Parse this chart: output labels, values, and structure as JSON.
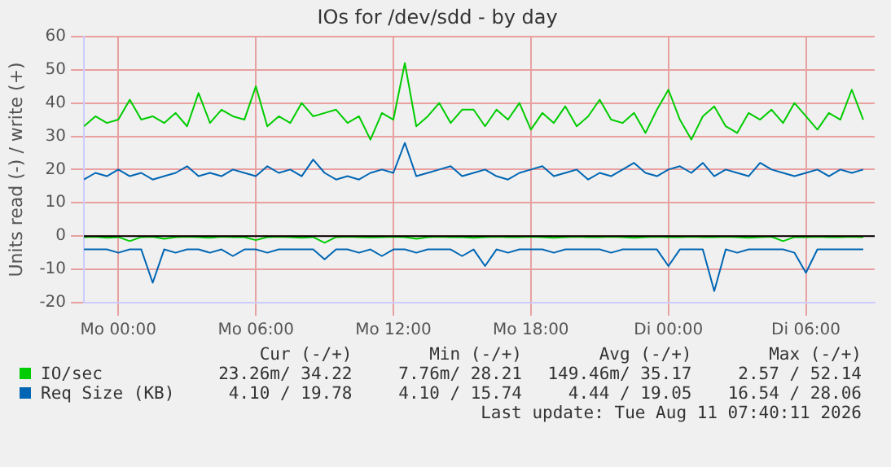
{
  "chart_data": {
    "type": "line",
    "title": "IOs for /dev/sdd - by day",
    "ylabel": "Units read (-) / write (+)",
    "x": [
      "2026-08-09T22:30",
      "2026-08-09T23:00",
      "2026-08-09T23:30",
      "2026-08-10T00:00",
      "2026-08-10T00:30",
      "2026-08-10T01:00",
      "2026-08-10T01:30",
      "2026-08-10T02:00",
      "2026-08-10T02:30",
      "2026-08-10T03:00",
      "2026-08-10T03:30",
      "2026-08-10T04:00",
      "2026-08-10T04:30",
      "2026-08-10T05:00",
      "2026-08-10T05:30",
      "2026-08-10T06:00",
      "2026-08-10T06:30",
      "2026-08-10T07:00",
      "2026-08-10T07:30",
      "2026-08-10T08:00",
      "2026-08-10T08:30",
      "2026-08-10T09:00",
      "2026-08-10T09:30",
      "2026-08-10T10:00",
      "2026-08-10T10:30",
      "2026-08-10T11:00",
      "2026-08-10T11:30",
      "2026-08-10T12:00",
      "2026-08-10T12:30",
      "2026-08-10T13:00",
      "2026-08-10T13:30",
      "2026-08-10T14:00",
      "2026-08-10T14:30",
      "2026-08-10T15:00",
      "2026-08-10T15:30",
      "2026-08-10T16:00",
      "2026-08-10T16:30",
      "2026-08-10T17:00",
      "2026-08-10T17:30",
      "2026-08-10T18:00",
      "2026-08-10T18:30",
      "2026-08-10T19:00",
      "2026-08-10T19:30",
      "2026-08-10T20:00",
      "2026-08-10T20:30",
      "2026-08-10T21:00",
      "2026-08-10T21:30",
      "2026-08-10T22:00",
      "2026-08-10T22:30",
      "2026-08-10T23:00",
      "2026-08-10T23:30",
      "2026-08-11T00:00",
      "2026-08-11T00:30",
      "2026-08-11T01:00",
      "2026-08-11T01:30",
      "2026-08-11T02:00",
      "2026-08-11T02:30",
      "2026-08-11T03:00",
      "2026-08-11T03:30",
      "2026-08-11T04:00",
      "2026-08-11T04:30",
      "2026-08-11T05:00",
      "2026-08-11T05:30",
      "2026-08-11T06:00",
      "2026-08-11T06:30",
      "2026-08-11T07:00",
      "2026-08-11T07:30",
      "2026-08-11T08:00",
      "2026-08-11T08:30"
    ],
    "series": [
      {
        "name": "IO/sec",
        "color": "#00cc00",
        "values": [
          33,
          36,
          34,
          35,
          41,
          35,
          36,
          34,
          37,
          33,
          43,
          34,
          38,
          36,
          35,
          45,
          33,
          36,
          34,
          40,
          36,
          37,
          38,
          34,
          36,
          29,
          37,
          35,
          52,
          33,
          36,
          40,
          34,
          38,
          38,
          33,
          38,
          35,
          40,
          32,
          37,
          34,
          39,
          33,
          36,
          41,
          35,
          34,
          37,
          31,
          38,
          44,
          35,
          29,
          36,
          39,
          33,
          31,
          37,
          35,
          38,
          34,
          40,
          36,
          32,
          37,
          35,
          44,
          35
        ]
      },
      {
        "color": "#00cc00",
        "values": [
          -0.3,
          -0.2,
          -0.5,
          -0.3,
          -1.5,
          -0.3,
          -0.2,
          -0.8,
          -0.3,
          -0.2,
          -0.3,
          -0.5,
          -0.2,
          -0.3,
          -0.3,
          -1.2,
          -0.3,
          -0.2,
          -0.3,
          -0.5,
          -0.3,
          -2,
          -0.3,
          -0.2,
          -0.3,
          -0.4,
          -0.3,
          -0.2,
          -0.3,
          -0.8,
          -0.3,
          -0.2,
          -0.3,
          -0.3,
          -0.5,
          -0.3,
          -0.2,
          -0.3,
          -0.3,
          -0.2,
          -0.3,
          -0.5,
          -0.3,
          -0.2,
          -0.3,
          -0.3,
          -0.2,
          -0.3,
          -0.5,
          -0.3,
          -0.2,
          -0.3,
          -0.3,
          -0.2,
          -0.3,
          -0.3,
          -0.2,
          -0.3,
          -0.5,
          -0.3,
          -0.2,
          -1.5,
          -0.3,
          -0.3,
          -0.2,
          -0.3,
          -0.3,
          -0.2,
          -0.3
        ]
      },
      {
        "name": "Req Size (KB)",
        "color": "#0066b3",
        "values": [
          17,
          19,
          18,
          20,
          18,
          19,
          17,
          18,
          19,
          21,
          18,
          19,
          18,
          20,
          19,
          18,
          21,
          19,
          20,
          18,
          23,
          19,
          17,
          18,
          17,
          19,
          20,
          19,
          28,
          18,
          19,
          20,
          21,
          18,
          19,
          20,
          18,
          17,
          19,
          20,
          21,
          18,
          19,
          20,
          17,
          19,
          18,
          20,
          22,
          19,
          18,
          20,
          21,
          19,
          22,
          18,
          20,
          19,
          18,
          22,
          20,
          19,
          18,
          19,
          20,
          18,
          20,
          19,
          20
        ]
      },
      {
        "color": "#0066b3",
        "values": [
          -4,
          -4,
          -4,
          -5,
          -4,
          -4,
          -14,
          -4,
          -5,
          -4,
          -4,
          -5,
          -4,
          -6,
          -4,
          -4,
          -5,
          -4,
          -4,
          -4,
          -4,
          -7,
          -4,
          -4,
          -5,
          -4,
          -6,
          -4,
          -4,
          -5,
          -4,
          -4,
          -4,
          -6,
          -4,
          -9,
          -4,
          -5,
          -4,
          -4,
          -4,
          -5,
          -4,
          -4,
          -4,
          -4,
          -5,
          -4,
          -4,
          -4,
          -4,
          -9,
          -4,
          -4,
          -4,
          -16.5,
          -4,
          -5,
          -4,
          -4,
          -4,
          -4,
          -5,
          -11,
          -4,
          -4,
          -4,
          -4,
          -4
        ]
      }
    ],
    "xlim": [
      "2026-08-09T22:30",
      "2026-08-11T09:00"
    ],
    "xticks": [
      {
        "value": "2026-08-10T00:00",
        "label": "Mo 00:00"
      },
      {
        "value": "2026-08-10T06:00",
        "label": "Mo 06:00"
      },
      {
        "value": "2026-08-10T12:00",
        "label": "Mo 12:00"
      },
      {
        "value": "2026-08-10T18:00",
        "label": "Mo 18:00"
      },
      {
        "value": "2026-08-11T00:00",
        "label": "Di 00:00"
      },
      {
        "value": "2026-08-11T06:00",
        "label": "Di 06:00"
      }
    ],
    "ylim": [
      -20,
      60
    ],
    "yticks": [
      -20,
      -10,
      0,
      10,
      20,
      30,
      40,
      50,
      60
    ],
    "ref_lines": [
      {
        "axis": "y",
        "value": 0,
        "color": "#000000"
      }
    ],
    "grid": true,
    "legend": "bottom",
    "marker": "none",
    "line_style": "solid",
    "annotations": [
      "Cur (-/+)",
      "Min (-/+)",
      "Avg (-/+)",
      "Max (-/+)",
      "23.26m/ 34.22",
      "7.76m/ 28.21",
      "149.46m/ 35.17",
      "2.57 / 52.14",
      "4.10 / 19.78",
      "4.10 / 15.74",
      "4.44 / 19.05",
      "16.54 / 28.06",
      "Last update: Tue Aug 11 07:40:11 2026"
    ]
  }
}
